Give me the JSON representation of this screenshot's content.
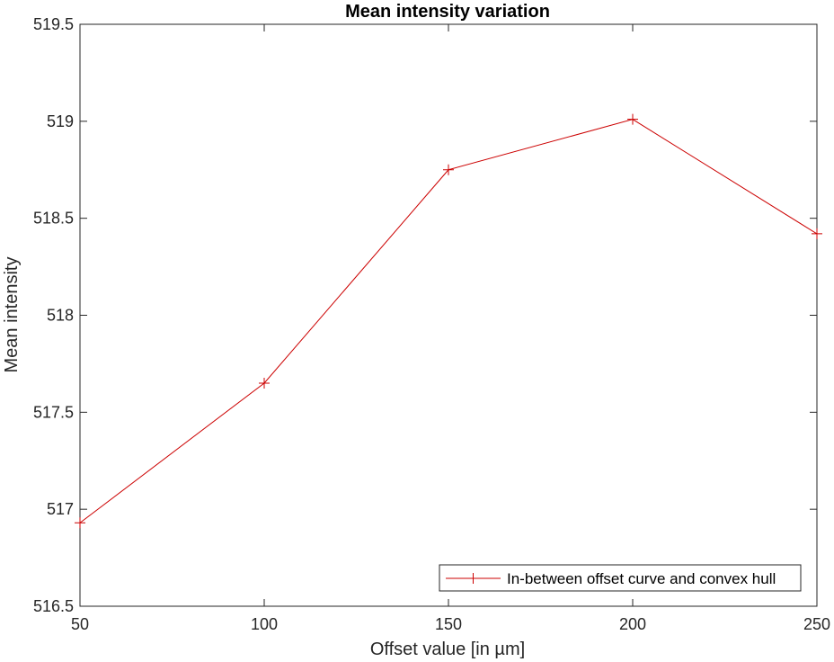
{
  "chart_data": {
    "type": "line",
    "title": "Mean intensity variation",
    "xlabel": "Offset value [in µm]",
    "ylabel": "Mean intensity",
    "xlim": [
      50,
      250
    ],
    "ylim": [
      516.5,
      519.5
    ],
    "xticks": [
      50,
      100,
      150,
      200,
      250
    ],
    "yticks": [
      516.5,
      517,
      517.5,
      518,
      518.5,
      519,
      519.5
    ],
    "xtick_labels": [
      "50",
      "100",
      "150",
      "200",
      "250"
    ],
    "ytick_labels": [
      "516.5",
      "517",
      "517.5",
      "518",
      "518.5",
      "519",
      "519.5"
    ],
    "grid": false,
    "legend_position": "bottom-right",
    "series": [
      {
        "name": "In-between offset curve and convex hull",
        "color": "#cc0000",
        "marker": "plus",
        "x": [
          50,
          100,
          150,
          200,
          250
        ],
        "y": [
          516.93,
          517.65,
          518.75,
          519.01,
          518.42
        ]
      }
    ]
  }
}
